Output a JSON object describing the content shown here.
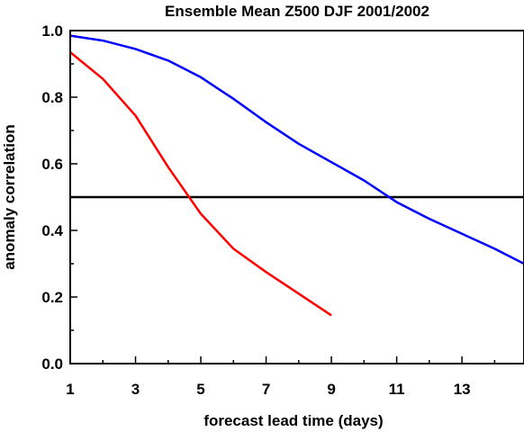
{
  "chart_data": {
    "type": "line",
    "title": "Ensemble Mean Z500 DJF 2001/2002",
    "xlabel": "forecast lead time (days)",
    "ylabel": "anomaly correlation",
    "xlim": [
      1,
      14.9
    ],
    "ylim": [
      0,
      1.0
    ],
    "x_ticks": [
      1,
      3,
      5,
      7,
      9,
      11,
      13
    ],
    "x_tick_labels": [
      "1",
      "3",
      "5",
      "7",
      "9",
      "11",
      "13"
    ],
    "y_ticks": [
      0,
      0.2,
      0.4,
      0.6,
      0.8,
      1.0
    ],
    "y_tick_labels": [
      "0.0",
      "0.2",
      "0.4",
      "0.6",
      "0.8",
      "1.0"
    ],
    "grid": false,
    "reference_line": {
      "y": 0.5,
      "color": "#000000"
    },
    "series": [
      {
        "color": "#0000ff",
        "x": [
          1,
          2,
          3,
          4,
          5,
          6,
          7,
          8,
          9,
          10,
          11,
          12,
          13,
          14,
          14.9
        ],
        "y": [
          0.985,
          0.97,
          0.945,
          0.91,
          0.86,
          0.795,
          0.725,
          0.66,
          0.605,
          0.55,
          0.485,
          0.435,
          0.39,
          0.345,
          0.3
        ]
      },
      {
        "color": "#ff0000",
        "x": [
          1,
          2,
          3,
          4,
          5,
          6,
          7,
          8,
          9
        ],
        "y": [
          0.935,
          0.855,
          0.745,
          0.59,
          0.45,
          0.345,
          0.275,
          0.21,
          0.145
        ]
      }
    ]
  }
}
